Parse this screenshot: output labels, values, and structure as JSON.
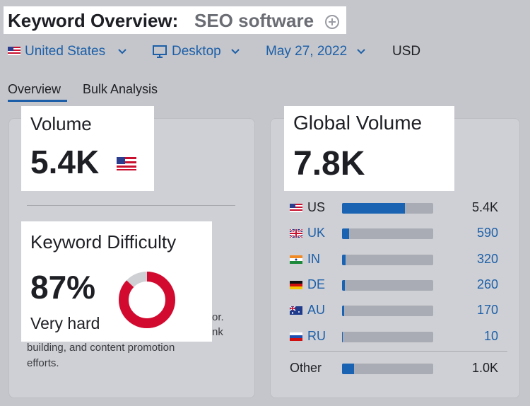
{
  "header": {
    "title": "Keyword Overview:",
    "keyword": "SEO software"
  },
  "filters": {
    "country": "United States",
    "device": "Desktop",
    "date": "May 27, 2022",
    "currency": "USD"
  },
  "tabs": [
    "Overview",
    "Bulk Analysis"
  ],
  "volume": {
    "label": "Volume",
    "value": 5400,
    "value_label": "5.4K"
  },
  "difficulty": {
    "label": "Keyword Difficulty",
    "value": 87,
    "value_label": "87%",
    "level": "Very hard",
    "description_fragments": [
      "or.",
      "nk"
    ],
    "description": [
      "building, and content promotion",
      "efforts."
    ]
  },
  "global_volume": {
    "label": "Global Volume",
    "value": 7800,
    "value_label": "7.8K",
    "countries": [
      {
        "code": "US",
        "value": 5400,
        "value_label": "5.4K"
      },
      {
        "code": "UK",
        "value": 590,
        "value_label": "590"
      },
      {
        "code": "IN",
        "value": 320,
        "value_label": "320"
      },
      {
        "code": "DE",
        "value": 260,
        "value_label": "260"
      },
      {
        "code": "AU",
        "value": 170,
        "value_label": "170"
      },
      {
        "code": "RU",
        "value": 10,
        "value_label": "10"
      }
    ],
    "other": {
      "label": "Other",
      "value": 1000,
      "value_label": "1.0K"
    }
  }
}
